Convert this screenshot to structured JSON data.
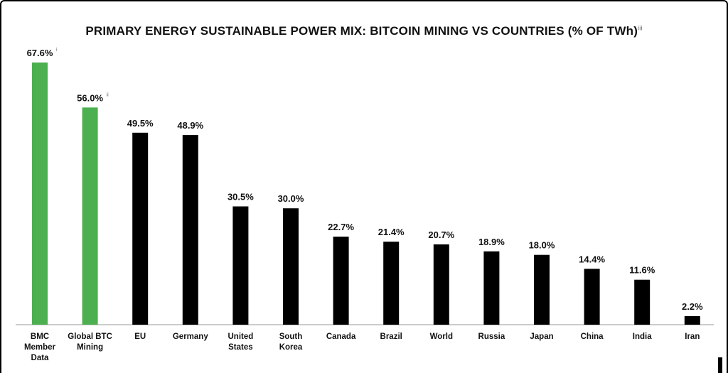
{
  "chart_data": {
    "type": "bar",
    "title": "PRIMARY ENERGY SUSTAINABLE POWER MIX: BITCOIN MINING VS COUNTRIES (% OF TWh)",
    "title_footnote": "iii",
    "categories": [
      [
        "BMC",
        "Member",
        "Data"
      ],
      [
        "Global BTC",
        "Mining"
      ],
      [
        "EU"
      ],
      [
        "Germany"
      ],
      [
        "United",
        "States"
      ],
      [
        "South",
        "Korea"
      ],
      [
        "Canada"
      ],
      [
        "Brazil"
      ],
      [
        "World"
      ],
      [
        "Russia"
      ],
      [
        "Japan"
      ],
      [
        "China"
      ],
      [
        "India"
      ],
      [
        "Iran"
      ]
    ],
    "values": [
      67.6,
      56.0,
      49.5,
      48.9,
      30.5,
      30.0,
      22.7,
      21.4,
      20.7,
      18.9,
      18.0,
      14.4,
      11.6,
      2.2
    ],
    "value_labels": [
      "67.6%",
      "56.0%",
      "49.5%",
      "48.9%",
      "30.5%",
      "30.0%",
      "22.7%",
      "21.4%",
      "20.7%",
      "18.9%",
      "18.0%",
      "14.4%",
      "11.6%",
      "2.2%"
    ],
    "value_footnotes": [
      "i",
      "ii",
      "",
      "",
      "",
      "",
      "",
      "",
      "",
      "",
      "",
      "",
      "",
      ""
    ],
    "highlight_count": 2,
    "colors": {
      "highlight": "#4caf50",
      "default": "#000000",
      "axis": "#999999"
    },
    "ylim": [
      0,
      67.6
    ],
    "grid": false,
    "legend": "none",
    "xlabel": "",
    "ylabel": ""
  }
}
